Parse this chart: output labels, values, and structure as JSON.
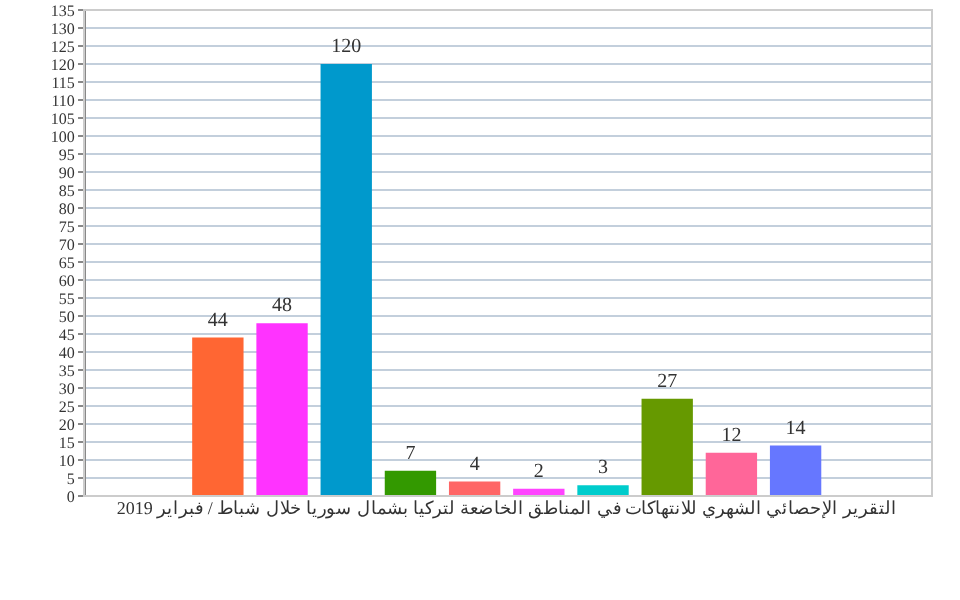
{
  "chart_data": {
    "type": "bar",
    "xlabel": "التقرير الإحصائي الشهري للانتهاكات في المناطق الخاضعة لتركيا بشمال سوريا خلال شباط / فبراير 2019",
    "categories": [
      null,
      null,
      null,
      null,
      null,
      null,
      null,
      null,
      null,
      null
    ],
    "values": [
      44,
      48,
      120,
      7,
      4,
      2,
      3,
      27,
      12,
      14
    ],
    "colors": [
      "#ff6633",
      "#ff33ff",
      "#0099cc",
      "#339900",
      "#ff6666",
      "#ff44ff",
      "#00cccc",
      "#669900",
      "#ff6699",
      "#6677ff"
    ],
    "ylim": [
      0,
      135
    ],
    "yticks": [
      0,
      5,
      10,
      15,
      20,
      25,
      30,
      35,
      40,
      45,
      50,
      55,
      60,
      65,
      70,
      75,
      80,
      85,
      90,
      95,
      100,
      105,
      110,
      115,
      120,
      125,
      130,
      135
    ],
    "grid": "y",
    "data_labels": true,
    "legend": false
  }
}
